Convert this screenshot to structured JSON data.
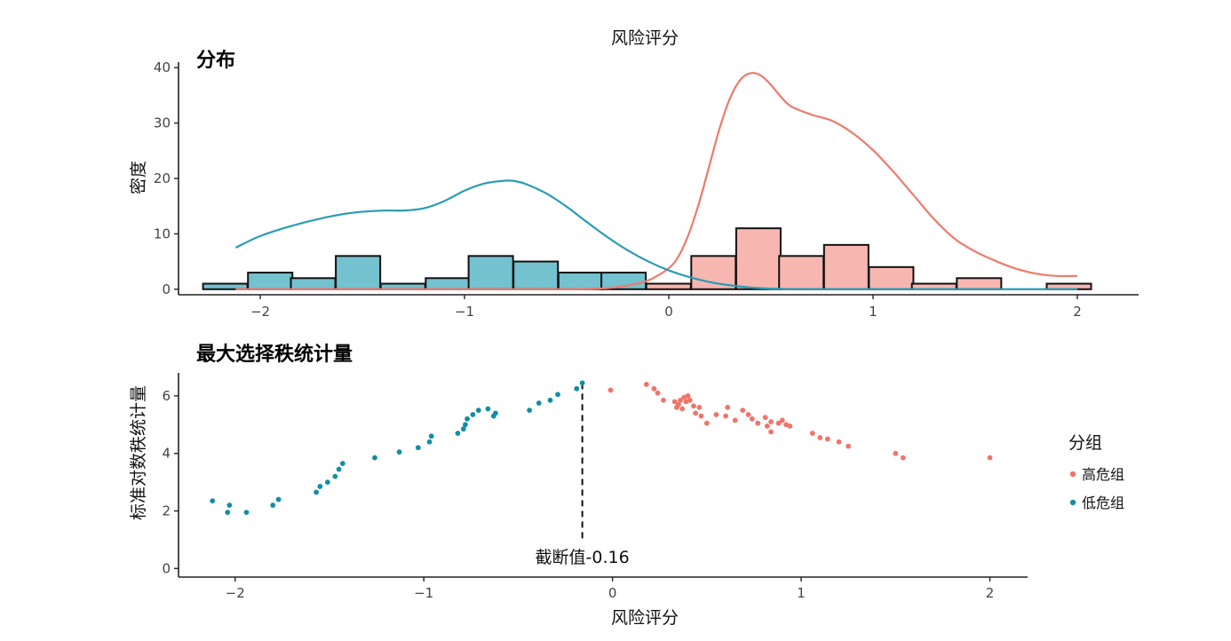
{
  "figure": {
    "top_xlabel": "风险评分",
    "bottom_xlabel": "风险评分"
  },
  "chart_data": [
    {
      "type": "bar",
      "panel_title": "分布",
      "xlabel": "风险评分",
      "ylabel": "密度",
      "xlim": [
        -2.4,
        2.3
      ],
      "ylim": [
        -1,
        41
      ],
      "xticks": [
        -2,
        -1,
        0,
        1,
        2
      ],
      "xtick_labels": [
        "−2",
        "−1",
        "0",
        "1",
        "2"
      ],
      "yticks": [
        0,
        10,
        20,
        30,
        40
      ],
      "ytick_labels": [
        "0",
        "10",
        "20",
        "30",
        "40"
      ],
      "bin_width": 0.2175,
      "histogram_low": {
        "color": "#74C1CF",
        "bins": [
          {
            "start": -2.28,
            "count": 1
          },
          {
            "start": -2.06,
            "count": 3
          },
          {
            "start": -1.85,
            "count": 2
          },
          {
            "start": -1.63,
            "count": 6
          },
          {
            "start": -1.41,
            "count": 1
          },
          {
            "start": -1.19,
            "count": 2
          },
          {
            "start": -0.98,
            "count": 6
          },
          {
            "start": -0.76,
            "count": 5
          },
          {
            "start": -0.54,
            "count": 3
          },
          {
            "start": -0.33,
            "count": 3
          }
        ]
      },
      "histogram_high": {
        "color": "#F8B6B0",
        "bins": [
          {
            "start": -0.11,
            "count": 1
          },
          {
            "start": 0.11,
            "count": 6
          },
          {
            "start": 0.33,
            "count": 11
          },
          {
            "start": 0.54,
            "count": 6
          },
          {
            "start": 0.76,
            "count": 8
          },
          {
            "start": 0.98,
            "count": 4
          },
          {
            "start": 1.19,
            "count": 1
          },
          {
            "start": 1.41,
            "count": 2
          },
          {
            "start": 1.63,
            "count": 0
          },
          {
            "start": 1.85,
            "count": 1
          }
        ]
      },
      "density_low": {
        "color": "#2A9BB5",
        "x": [
          -2.12,
          -2.0,
          -1.85,
          -1.7,
          -1.55,
          -1.4,
          -1.3,
          -1.2,
          -1.1,
          -1.0,
          -0.9,
          -0.8,
          -0.75,
          -0.7,
          -0.6,
          -0.5,
          -0.4,
          -0.3,
          -0.2,
          -0.1,
          0.0,
          0.1,
          0.2,
          0.3,
          0.4,
          0.5,
          0.7,
          1.0,
          1.5,
          2.0
        ],
        "y": [
          7.5,
          9.6,
          11.4,
          12.8,
          13.8,
          14.2,
          14.2,
          14.6,
          15.9,
          17.8,
          19.1,
          19.6,
          19.5,
          19.0,
          17.3,
          14.9,
          12.1,
          9.4,
          7.0,
          5.0,
          3.4,
          2.2,
          1.3,
          0.7,
          0.3,
          0.1,
          0,
          0,
          0,
          0
        ]
      },
      "density_high": {
        "color": "#EE7A6B",
        "x": [
          -2.12,
          -1.5,
          -1.0,
          -0.5,
          -0.3,
          -0.2,
          -0.1,
          0.0,
          0.05,
          0.1,
          0.15,
          0.2,
          0.25,
          0.3,
          0.35,
          0.4,
          0.45,
          0.5,
          0.55,
          0.6,
          0.7,
          0.8,
          0.9,
          1.0,
          1.1,
          1.2,
          1.3,
          1.4,
          1.5,
          1.6,
          1.7,
          1.8,
          1.9,
          2.0
        ],
        "y": [
          0,
          0,
          0,
          0,
          0.2,
          0.7,
          1.6,
          3.8,
          6.1,
          10.2,
          15.8,
          22.5,
          29.2,
          34.5,
          37.8,
          39.0,
          38.6,
          36.9,
          34.7,
          33.0,
          31.5,
          30.4,
          28.2,
          25.1,
          21.2,
          16.9,
          12.6,
          9.1,
          6.8,
          5.1,
          3.7,
          2.8,
          2.4,
          2.4
        ]
      }
    },
    {
      "type": "scatter",
      "panel_title": "最大选择秩统计量",
      "xlabel": "风险评分",
      "ylabel": "标准对数秩统计量",
      "xlim": [
        -2.3,
        2.2
      ],
      "ylim": [
        -0.3,
        6.8
      ],
      "xticks": [
        -2,
        -1,
        0,
        1,
        2
      ],
      "xtick_labels": [
        "−2",
        "−1",
        "0",
        "1",
        "2"
      ],
      "yticks": [
        0,
        2,
        4,
        6
      ],
      "ytick_labels": [
        "0",
        "2",
        "4",
        "6"
      ],
      "cutoff": {
        "value": -0.16,
        "label": "截断值-0.16"
      },
      "legend": {
        "title": "分组",
        "position": "right",
        "entries": [
          {
            "label": "高危组",
            "color": "#F0746A"
          },
          {
            "label": "低危组",
            "color": "#118EA6"
          }
        ]
      },
      "series": [
        {
          "name": "高危组",
          "color": "#F0746A",
          "points": [
            [
              -0.01,
              6.2
            ],
            [
              0.18,
              6.4
            ],
            [
              0.22,
              6.25
            ],
            [
              0.24,
              6.1
            ],
            [
              0.27,
              5.85
            ],
            [
              0.33,
              5.8
            ],
            [
              0.34,
              5.6
            ],
            [
              0.35,
              5.7
            ],
            [
              0.36,
              5.85
            ],
            [
              0.37,
              5.55
            ],
            [
              0.38,
              5.95
            ],
            [
              0.39,
              5.8
            ],
            [
              0.4,
              6.0
            ],
            [
              0.41,
              5.85
            ],
            [
              0.43,
              5.65
            ],
            [
              0.44,
              5.4
            ],
            [
              0.46,
              5.6
            ],
            [
              0.47,
              5.3
            ],
            [
              0.5,
              5.05
            ],
            [
              0.55,
              5.35
            ],
            [
              0.6,
              5.3
            ],
            [
              0.61,
              5.6
            ],
            [
              0.65,
              5.15
            ],
            [
              0.69,
              5.5
            ],
            [
              0.72,
              5.35
            ],
            [
              0.74,
              5.2
            ],
            [
              0.77,
              5.05
            ],
            [
              0.81,
              5.25
            ],
            [
              0.82,
              4.95
            ],
            [
              0.84,
              5.1
            ],
            [
              0.84,
              4.75
            ],
            [
              0.88,
              5.05
            ],
            [
              0.9,
              5.15
            ],
            [
              0.92,
              5.0
            ],
            [
              0.94,
              4.95
            ],
            [
              1.06,
              4.7
            ],
            [
              1.1,
              4.55
            ],
            [
              1.14,
              4.5
            ],
            [
              1.2,
              4.4
            ],
            [
              1.25,
              4.25
            ],
            [
              1.5,
              4.0
            ],
            [
              1.54,
              3.85
            ],
            [
              2.0,
              3.85
            ]
          ]
        },
        {
          "name": "低危组",
          "color": "#118EA6",
          "points": [
            [
              -2.12,
              2.35
            ],
            [
              -2.04,
              1.95
            ],
            [
              -2.03,
              2.2
            ],
            [
              -1.94,
              1.95
            ],
            [
              -1.8,
              2.2
            ],
            [
              -1.77,
              2.4
            ],
            [
              -1.57,
              2.65
            ],
            [
              -1.55,
              2.85
            ],
            [
              -1.51,
              3.0
            ],
            [
              -1.47,
              3.2
            ],
            [
              -1.45,
              3.45
            ],
            [
              -1.43,
              3.65
            ],
            [
              -1.26,
              3.85
            ],
            [
              -1.13,
              4.05
            ],
            [
              -1.03,
              4.2
            ],
            [
              -0.97,
              4.4
            ],
            [
              -0.96,
              4.6
            ],
            [
              -0.82,
              4.7
            ],
            [
              -0.79,
              4.85
            ],
            [
              -0.78,
              5.0
            ],
            [
              -0.77,
              5.2
            ],
            [
              -0.74,
              5.35
            ],
            [
              -0.71,
              5.5
            ],
            [
              -0.66,
              5.55
            ],
            [
              -0.63,
              5.3
            ],
            [
              -0.62,
              5.4
            ],
            [
              -0.44,
              5.5
            ],
            [
              -0.39,
              5.75
            ],
            [
              -0.33,
              5.85
            ],
            [
              -0.29,
              6.05
            ],
            [
              -0.19,
              6.25
            ],
            [
              -0.16,
              6.45
            ]
          ]
        }
      ]
    }
  ]
}
